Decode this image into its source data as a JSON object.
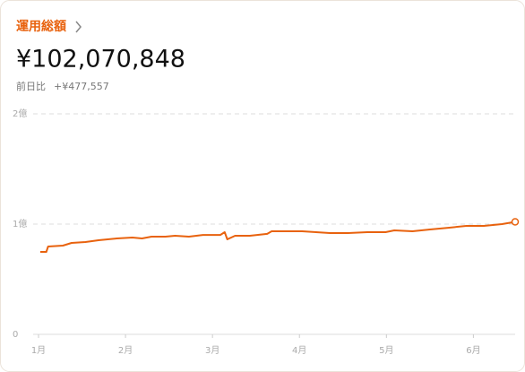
{
  "header": {
    "title": "運用総額",
    "total": "¥102,070,848",
    "change_label": "前日比",
    "change": "+¥477,557"
  },
  "chart_data": {
    "type": "line",
    "color": "#e8620e",
    "x": [
      1.02,
      1.09,
      1.11,
      1.28,
      1.38,
      1.54,
      1.69,
      1.9,
      2.08,
      2.19,
      2.3,
      2.46,
      2.57,
      2.73,
      2.89,
      3.09,
      3.14,
      3.17,
      3.26,
      3.43,
      3.63,
      3.68,
      3.82,
      4.03,
      4.19,
      4.35,
      4.56,
      4.78,
      4.99,
      5.09,
      5.3,
      5.5,
      5.71,
      5.92,
      6.12,
      6.33,
      6.48
    ],
    "values": [
      74800000,
      74800000,
      79700000,
      80500000,
      82900000,
      83700000,
      85400000,
      87000000,
      87800000,
      87000000,
      88600000,
      88600000,
      89400000,
      88600000,
      90200000,
      90200000,
      92700000,
      86200000,
      89400000,
      89400000,
      91100000,
      93500000,
      93500000,
      93500000,
      92700000,
      91900000,
      91900000,
      92700000,
      92700000,
      94300000,
      93500000,
      95100000,
      96700000,
      98400000,
      98400000,
      100000000,
      102070848
    ],
    "xlim": [
      1,
      6.48
    ],
    "xticks": [
      {
        "value": 1,
        "label": "1月"
      },
      {
        "value": 2,
        "label": "2月"
      },
      {
        "value": 3,
        "label": "3月"
      },
      {
        "value": 4,
        "label": "4月"
      },
      {
        "value": 5,
        "label": "5月"
      },
      {
        "value": 6,
        "label": "6月"
      }
    ],
    "ylim": [
      0,
      200000000
    ],
    "yticks": [
      0,
      {
        "value": 100000000,
        "label": "1億"
      },
      {
        "value": 200000000,
        "label": "2億"
      }
    ],
    "grid": true
  }
}
